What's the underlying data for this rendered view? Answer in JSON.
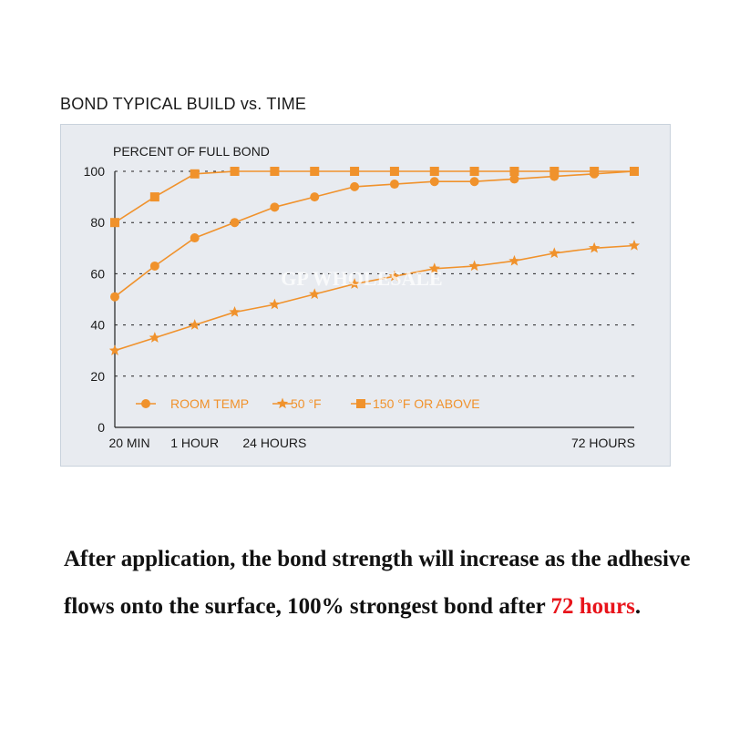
{
  "chart_data": {
    "type": "line",
    "title": "BOND TYPICAL BUILD vs. TIME",
    "ylabel": "PERCENT OF FULL BOND",
    "xlabel": "",
    "ylim": [
      0,
      100
    ],
    "yticks": [
      0,
      20,
      40,
      60,
      80,
      100
    ],
    "x_tick_labels": [
      "20 MIN",
      "1 HOUR",
      "24 HOURS",
      "72 HOURS"
    ],
    "x_tick_indices": [
      0,
      2,
      4,
      13
    ],
    "grid": "horizontal-dashed",
    "legend_position": "bottom-left",
    "line_color": "#f0922c",
    "series": [
      {
        "name": "ROOM TEMP",
        "marker": "circle",
        "x": [
          0,
          1,
          2,
          3,
          4,
          5,
          6,
          7,
          8,
          9,
          10,
          11,
          12,
          13
        ],
        "values": [
          51,
          63,
          74,
          80,
          86,
          90,
          94,
          95,
          96,
          96,
          97,
          98,
          99,
          100
        ]
      },
      {
        "name": "50 °F",
        "marker": "star",
        "x": [
          0,
          1,
          2,
          3,
          4,
          5,
          6,
          7,
          8,
          9,
          10,
          11,
          12,
          13
        ],
        "values": [
          30,
          35,
          40,
          45,
          48,
          52,
          56,
          59,
          62,
          63,
          65,
          68,
          70,
          71
        ]
      },
      {
        "name": "150 °F OR ABOVE",
        "marker": "square",
        "x": [
          0,
          1,
          2,
          3,
          4,
          5,
          6,
          7,
          8,
          9,
          10,
          11,
          12,
          13
        ],
        "values": [
          80,
          90,
          99,
          100,
          100,
          100,
          100,
          100,
          100,
          100,
          100,
          100,
          100,
          100
        ]
      }
    ]
  },
  "watermark": "GP WHOLESALE",
  "caption": {
    "text_before": "After application, the bond strength will increase as the adhesive flows onto the surface, 100% strongest bond after ",
    "highlight": "72 hours",
    "text_after": ".",
    "highlight_color": "#e8141b"
  }
}
